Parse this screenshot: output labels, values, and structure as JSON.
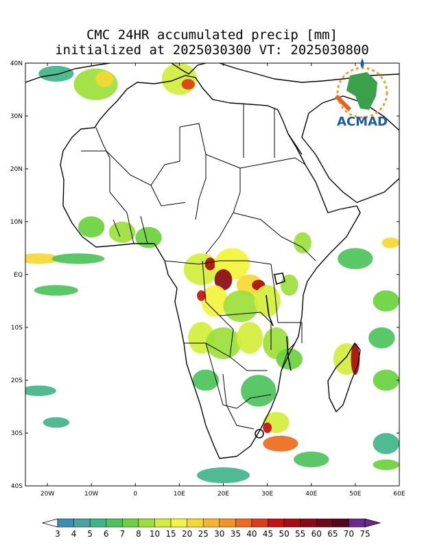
{
  "title": {
    "line1": "CMC 24HR accumulated precip [mm]",
    "line2": "initialized at 2025030300 VT: 2025030800"
  },
  "logo": {
    "text": "ACMAD"
  },
  "axes": {
    "lat_labels": [
      "40N",
      "30N",
      "20N",
      "10N",
      "EQ",
      "10S",
      "20S",
      "30S",
      "40S"
    ],
    "lat_values": [
      40,
      30,
      20,
      10,
      0,
      -10,
      -20,
      -30,
      -40
    ],
    "lon_labels": [
      "20W",
      "10W",
      "0",
      "10E",
      "20E",
      "30E",
      "40E",
      "50E",
      "60E"
    ],
    "lon_values": [
      -20,
      -10,
      0,
      10,
      20,
      30,
      40,
      50,
      60
    ],
    "lon_range": [
      -25,
      60
    ],
    "lat_range": [
      -40,
      40
    ]
  },
  "colorbar": {
    "labels": [
      "3",
      "4",
      "5",
      "6",
      "7",
      "8",
      "10",
      "15",
      "20",
      "25",
      "30",
      "35",
      "40",
      "45",
      "50",
      "55",
      "60",
      "65",
      "70",
      "75"
    ],
    "colors": [
      "#ffffff",
      "#3a8fb0",
      "#4aa3a0",
      "#3fb58c",
      "#4cc35a",
      "#6ad23c",
      "#9be03a",
      "#d2ee3a",
      "#f2f53a",
      "#f6d830",
      "#f6b628",
      "#f29422",
      "#ee6a1c",
      "#e23a14",
      "#c81010",
      "#a80c10",
      "#8a0a14",
      "#6e0818",
      "#54061c",
      "#6a2a8a"
    ]
  },
  "precip_blobs": [
    {
      "lon": -18,
      "lat": 38,
      "rx": 4,
      "ry": 1.5,
      "level": 3
    },
    {
      "lon": -9,
      "lat": 36,
      "rx": 5,
      "ry": 3,
      "level": 6
    },
    {
      "lon": -7,
      "lat": 37,
      "rx": 2,
      "ry": 1.5,
      "level": 9
    },
    {
      "lon": 10,
      "lat": 37,
      "rx": 4,
      "ry": 3,
      "level": 7
    },
    {
      "lon": 12,
      "lat": 36,
      "rx": 1.5,
      "ry": 1,
      "level": 13
    },
    {
      "lon": -10,
      "lat": 9,
      "rx": 3,
      "ry": 2,
      "level": 5
    },
    {
      "lon": -3,
      "lat": 8,
      "rx": 3,
      "ry": 2,
      "level": 6
    },
    {
      "lon": 3,
      "lat": 7,
      "rx": 3,
      "ry": 2,
      "level": 5
    },
    {
      "lon": -22,
      "lat": 3,
      "rx": 5,
      "ry": 1,
      "level": 9
    },
    {
      "lon": -13,
      "lat": 3,
      "rx": 6,
      "ry": 1,
      "level": 4
    },
    {
      "lon": -18,
      "lat": -3,
      "rx": 5,
      "ry": 1,
      "level": 4
    },
    {
      "lon": 15,
      "lat": 1,
      "rx": 4,
      "ry": 3,
      "level": 7
    },
    {
      "lon": 17,
      "lat": 2,
      "rx": 1.2,
      "ry": 1.2,
      "level": 15
    },
    {
      "lon": 22,
      "lat": 2,
      "rx": 4,
      "ry": 3,
      "level": 8
    },
    {
      "lon": 20,
      "lat": -1,
      "rx": 2,
      "ry": 2,
      "level": 16
    },
    {
      "lon": 26,
      "lat": -2,
      "rx": 3,
      "ry": 2,
      "level": 9
    },
    {
      "lon": 28,
      "lat": -2,
      "rx": 1.5,
      "ry": 1,
      "level": 15
    },
    {
      "lon": 18,
      "lat": -5,
      "rx": 3,
      "ry": 3,
      "level": 8
    },
    {
      "lon": 15,
      "lat": -4,
      "rx": 1,
      "ry": 1,
      "level": 14
    },
    {
      "lon": 24,
      "lat": -6,
      "rx": 4,
      "ry": 3,
      "level": 6
    },
    {
      "lon": 30,
      "lat": -5,
      "rx": 3,
      "ry": 3,
      "level": 7
    },
    {
      "lon": 35,
      "lat": -2,
      "rx": 2,
      "ry": 2,
      "level": 6
    },
    {
      "lon": 38,
      "lat": 6,
      "rx": 2,
      "ry": 2,
      "level": 6
    },
    {
      "lon": 15,
      "lat": -12,
      "rx": 3,
      "ry": 3,
      "level": 7
    },
    {
      "lon": 20,
      "lat": -13,
      "rx": 4,
      "ry": 3,
      "level": 6
    },
    {
      "lon": 26,
      "lat": -12,
      "rx": 3,
      "ry": 3,
      "level": 7
    },
    {
      "lon": 32,
      "lat": -13,
      "rx": 3,
      "ry": 3,
      "level": 6
    },
    {
      "lon": 35,
      "lat": -16,
      "rx": 3,
      "ry": 2,
      "level": 5
    },
    {
      "lon": 16,
      "lat": -20,
      "rx": 3,
      "ry": 2,
      "level": 4
    },
    {
      "lon": 28,
      "lat": -22,
      "rx": 4,
      "ry": 3,
      "level": 4
    },
    {
      "lon": 32,
      "lat": -28,
      "rx": 3,
      "ry": 2,
      "level": 7
    },
    {
      "lon": 33,
      "lat": -32,
      "rx": 4,
      "ry": 1.5,
      "level": 12
    },
    {
      "lon": 30,
      "lat": -29,
      "rx": 1,
      "ry": 1,
      "level": 14
    },
    {
      "lon": 40,
      "lat": -35,
      "rx": 4,
      "ry": 1.5,
      "level": 4
    },
    {
      "lon": 48,
      "lat": -16,
      "rx": 3,
      "ry": 3,
      "level": 7
    },
    {
      "lon": 50,
      "lat": -16,
      "rx": 1,
      "ry": 3,
      "level": 15
    },
    {
      "lon": 57,
      "lat": -20,
      "rx": 3,
      "ry": 2,
      "level": 5
    },
    {
      "lon": 57,
      "lat": -5,
      "rx": 3,
      "ry": 2,
      "level": 5
    },
    {
      "lon": 58,
      "lat": 6,
      "rx": 2,
      "ry": 1,
      "level": 9
    },
    {
      "lon": 50,
      "lat": 3,
      "rx": 4,
      "ry": 2,
      "level": 4
    },
    {
      "lon": 56,
      "lat": -12,
      "rx": 3,
      "ry": 2,
      "level": 4
    },
    {
      "lon": -22,
      "lat": -22,
      "rx": 4,
      "ry": 1,
      "level": 3
    },
    {
      "lon": -18,
      "lat": -28,
      "rx": 3,
      "ry": 1,
      "level": 3
    },
    {
      "lon": 20,
      "lat": -38,
      "rx": 6,
      "ry": 1.5,
      "level": 3
    },
    {
      "lon": 57,
      "lat": -32,
      "rx": 3,
      "ry": 2,
      "level": 3
    },
    {
      "lon": 57,
      "lat": -36,
      "rx": 3,
      "ry": 1,
      "level": 5
    }
  ]
}
